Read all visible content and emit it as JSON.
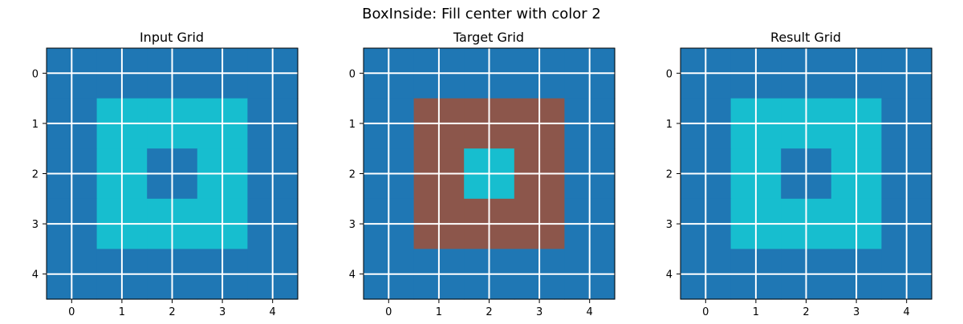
{
  "figure": {
    "title": "BoxInside: Fill center with color 2"
  },
  "chart_data": [
    {
      "type": "heatmap",
      "title": "Input Grid",
      "xticks": [
        "0",
        "1",
        "2",
        "3",
        "4"
      ],
      "yticks": [
        "0",
        "1",
        "2",
        "3",
        "4"
      ],
      "xlim": [
        -0.5,
        4.5
      ],
      "ylim": [
        4.5,
        -0.5
      ],
      "grid": true,
      "values": [
        [
          0,
          0,
          0,
          0,
          0
        ],
        [
          0,
          1,
          1,
          1,
          0
        ],
        [
          0,
          1,
          0,
          1,
          0
        ],
        [
          0,
          1,
          1,
          1,
          0
        ],
        [
          0,
          0,
          0,
          0,
          0
        ]
      ]
    },
    {
      "type": "heatmap",
      "title": "Target Grid",
      "xticks": [
        "0",
        "1",
        "2",
        "3",
        "4"
      ],
      "yticks": [
        "0",
        "1",
        "2",
        "3",
        "4"
      ],
      "xlim": [
        -0.5,
        4.5
      ],
      "ylim": [
        4.5,
        -0.5
      ],
      "grid": true,
      "values": [
        [
          0,
          0,
          0,
          0,
          0
        ],
        [
          0,
          2,
          2,
          2,
          0
        ],
        [
          0,
          2,
          1,
          2,
          0
        ],
        [
          0,
          2,
          2,
          2,
          0
        ],
        [
          0,
          0,
          0,
          0,
          0
        ]
      ]
    },
    {
      "type": "heatmap",
      "title": "Result Grid",
      "xticks": [
        "0",
        "1",
        "2",
        "3",
        "4"
      ],
      "yticks": [
        "0",
        "1",
        "2",
        "3",
        "4"
      ],
      "xlim": [
        -0.5,
        4.5
      ],
      "ylim": [
        4.5,
        -0.5
      ],
      "grid": true,
      "values": [
        [
          0,
          0,
          0,
          0,
          0
        ],
        [
          0,
          1,
          1,
          1,
          0
        ],
        [
          0,
          1,
          0,
          1,
          0
        ],
        [
          0,
          1,
          1,
          1,
          0
        ],
        [
          0,
          0,
          0,
          0,
          0
        ]
      ]
    }
  ],
  "colors": {
    "0": "#1f77b4",
    "1": "#17becf",
    "2": "#8c564b",
    "grid": "#ffffff",
    "axis": "#000000"
  }
}
